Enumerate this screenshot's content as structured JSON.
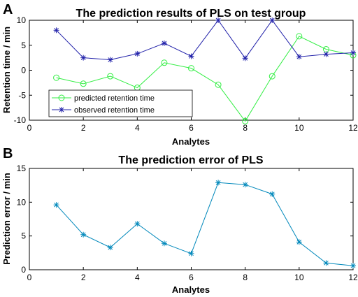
{
  "panel_letters": {
    "a": "A",
    "b": "B"
  },
  "chart_data": [
    {
      "type": "line",
      "title": "The prediction results of PLS on test group",
      "xlabel": "Analytes",
      "ylabel": "Retention time / min",
      "xlim": [
        0,
        12
      ],
      "ylim": [
        -10,
        10
      ],
      "xticks": [
        0,
        2,
        4,
        6,
        8,
        10,
        12
      ],
      "yticks": [
        -10,
        -5,
        0,
        5,
        10
      ],
      "legend_position": "bottom-left",
      "grid": false,
      "x": [
        1,
        2,
        3,
        4,
        5,
        6,
        7,
        8,
        9,
        10,
        11,
        12
      ],
      "series": [
        {
          "name": "predicted retention time",
          "color": "#33ee44",
          "marker": "circle",
          "values": [
            -1.5,
            -2.7,
            -1.2,
            -3.5,
            1.5,
            0.4,
            -2.9,
            -10.2,
            -1.2,
            6.8,
            4.2,
            3.0
          ]
        },
        {
          "name": "observed retention time",
          "color": "#2222aa",
          "marker": "asterisk",
          "values": [
            8.0,
            2.5,
            2.1,
            3.3,
            5.4,
            2.8,
            10.0,
            2.4,
            10.0,
            2.7,
            3.2,
            3.5
          ]
        }
      ]
    },
    {
      "type": "line",
      "title": "The prediction error of PLS",
      "xlabel": "Analytes",
      "ylabel": "Prediction error / min",
      "xlim": [
        0,
        12
      ],
      "ylim": [
        0,
        15
      ],
      "xticks": [
        0,
        2,
        4,
        6,
        8,
        10,
        12
      ],
      "yticks": [
        0,
        5,
        10,
        15
      ],
      "grid": false,
      "x": [
        1,
        2,
        3,
        4,
        5,
        6,
        7,
        8,
        9,
        10,
        11,
        12
      ],
      "series": [
        {
          "color": "#0088bb",
          "marker": "asterisk",
          "values": [
            9.6,
            5.2,
            3.3,
            6.8,
            3.9,
            2.4,
            12.9,
            12.6,
            11.2,
            4.1,
            1.0,
            0.6
          ]
        }
      ]
    }
  ]
}
